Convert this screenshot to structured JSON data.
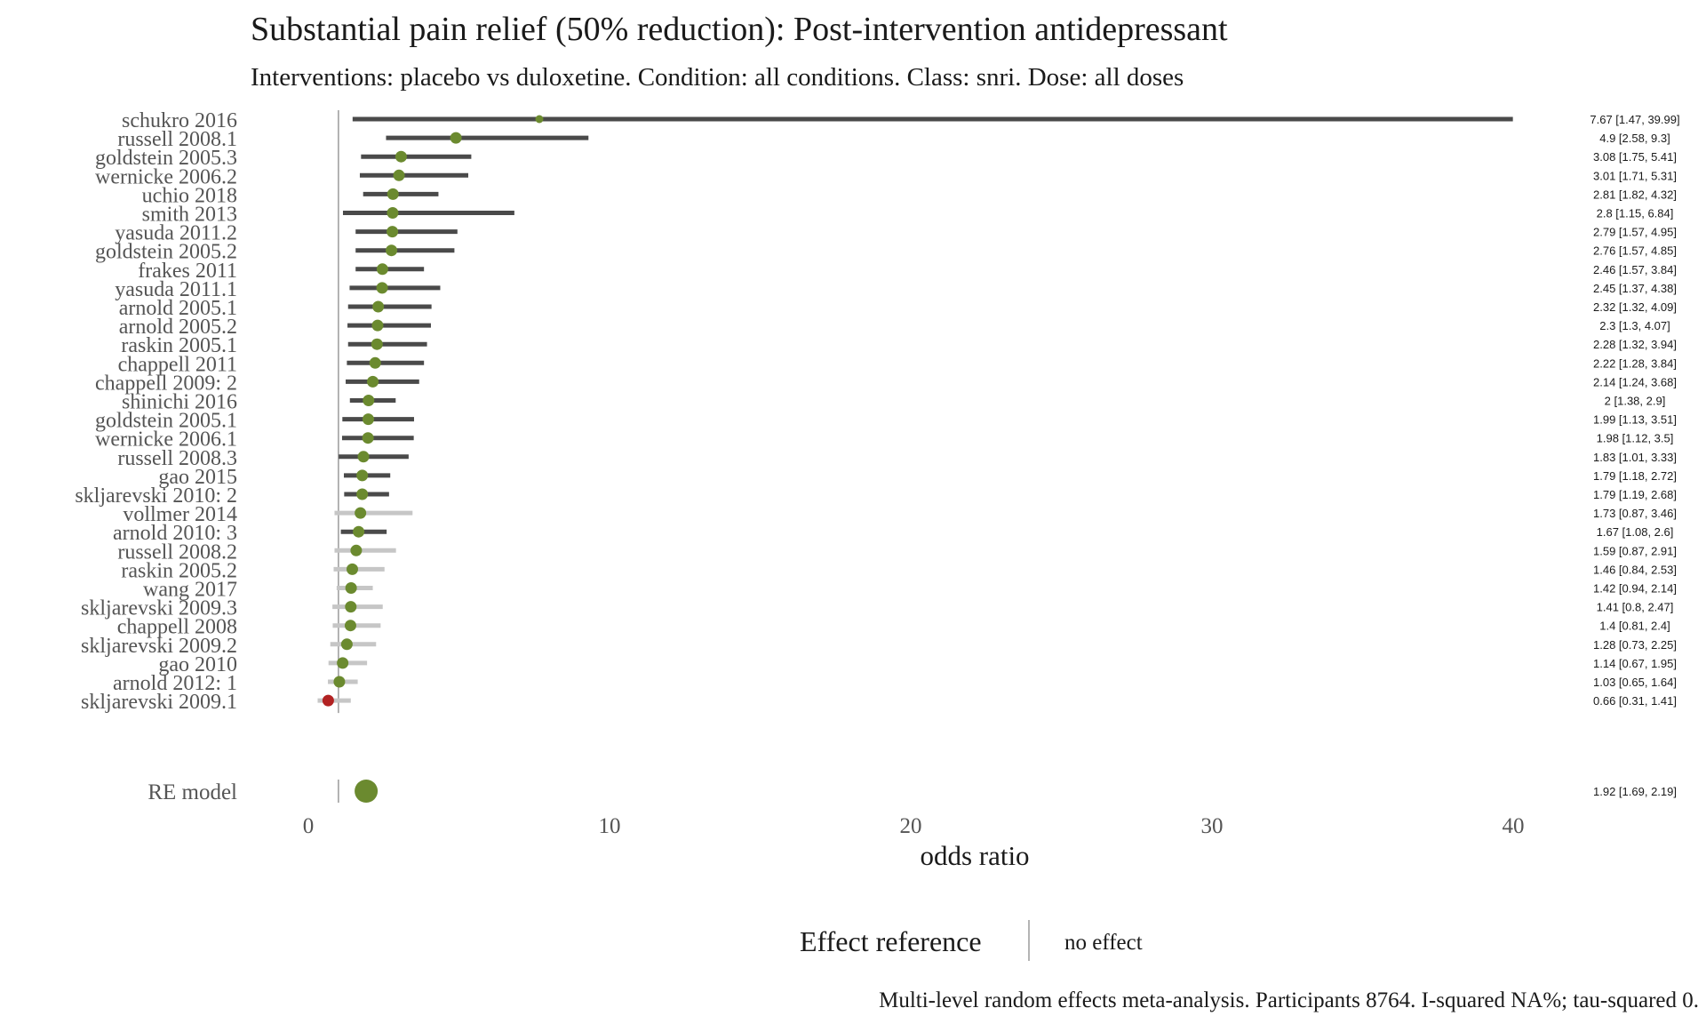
{
  "chart_data": {
    "type": "forest",
    "title": "Substantial pain relief (50% reduction): Post-intervention antidepressant",
    "subtitle": "Interventions: placebo vs duloxetine. Condition: all conditions. Class: snri. Dose: all doses",
    "xlabel": "odds ratio",
    "xlim": [
      0,
      40
    ],
    "xticks": [
      0,
      10,
      20,
      30,
      40
    ],
    "reference_value": 1,
    "studies": [
      {
        "name": "schukro 2016",
        "or": 7.67,
        "lower": 1.47,
        "upper": 39.99,
        "label": "7.67 [1.47, 39.99]"
      },
      {
        "name": "russell 2008.1",
        "or": 4.9,
        "lower": 2.58,
        "upper": 9.3,
        "label": "4.9 [2.58, 9.3]"
      },
      {
        "name": "goldstein 2005.3",
        "or": 3.08,
        "lower": 1.75,
        "upper": 5.41,
        "label": "3.08 [1.75, 5.41]"
      },
      {
        "name": "wernicke 2006.2",
        "or": 3.01,
        "lower": 1.71,
        "upper": 5.31,
        "label": "3.01 [1.71, 5.31]"
      },
      {
        "name": "uchio 2018",
        "or": 2.81,
        "lower": 1.82,
        "upper": 4.32,
        "label": "2.81 [1.82, 4.32]"
      },
      {
        "name": "smith 2013",
        "or": 2.8,
        "lower": 1.15,
        "upper": 6.84,
        "label": "2.8 [1.15, 6.84]"
      },
      {
        "name": "yasuda 2011.2",
        "or": 2.79,
        "lower": 1.57,
        "upper": 4.95,
        "label": "2.79 [1.57, 4.95]"
      },
      {
        "name": "goldstein 2005.2",
        "or": 2.76,
        "lower": 1.57,
        "upper": 4.85,
        "label": "2.76 [1.57, 4.85]"
      },
      {
        "name": "frakes 2011",
        "or": 2.46,
        "lower": 1.57,
        "upper": 3.84,
        "label": "2.46 [1.57, 3.84]"
      },
      {
        "name": "yasuda 2011.1",
        "or": 2.45,
        "lower": 1.37,
        "upper": 4.38,
        "label": "2.45 [1.37, 4.38]"
      },
      {
        "name": "arnold 2005.1",
        "or": 2.32,
        "lower": 1.32,
        "upper": 4.09,
        "label": "2.32 [1.32, 4.09]"
      },
      {
        "name": "arnold 2005.2",
        "or": 2.3,
        "lower": 1.3,
        "upper": 4.07,
        "label": "2.3 [1.3, 4.07]"
      },
      {
        "name": "raskin 2005.1",
        "or": 2.28,
        "lower": 1.32,
        "upper": 3.94,
        "label": "2.28 [1.32, 3.94]"
      },
      {
        "name": "chappell 2011",
        "or": 2.22,
        "lower": 1.28,
        "upper": 3.84,
        "label": "2.22 [1.28, 3.84]"
      },
      {
        "name": "chappell 2009: 2",
        "or": 2.14,
        "lower": 1.24,
        "upper": 3.68,
        "label": "2.14 [1.24, 3.68]"
      },
      {
        "name": "shinichi 2016",
        "or": 2,
        "lower": 1.38,
        "upper": 2.9,
        "label": "2 [1.38, 2.9]"
      },
      {
        "name": "goldstein 2005.1",
        "or": 1.99,
        "lower": 1.13,
        "upper": 3.51,
        "label": "1.99 [1.13, 3.51]"
      },
      {
        "name": "wernicke 2006.1",
        "or": 1.98,
        "lower": 1.12,
        "upper": 3.5,
        "label": "1.98 [1.12, 3.5]"
      },
      {
        "name": "russell 2008.3",
        "or": 1.83,
        "lower": 1.01,
        "upper": 3.33,
        "label": "1.83 [1.01, 3.33]"
      },
      {
        "name": "gao 2015",
        "or": 1.79,
        "lower": 1.18,
        "upper": 2.72,
        "label": "1.79 [1.18, 2.72]"
      },
      {
        "name": "skljarevski 2010: 2",
        "or": 1.79,
        "lower": 1.19,
        "upper": 2.68,
        "label": "1.79 [1.19, 2.68]"
      },
      {
        "name": "vollmer 2014",
        "or": 1.73,
        "lower": 0.87,
        "upper": 3.46,
        "label": "1.73 [0.87, 3.46]"
      },
      {
        "name": "arnold 2010: 3",
        "or": 1.67,
        "lower": 1.08,
        "upper": 2.6,
        "label": "1.67 [1.08, 2.6]"
      },
      {
        "name": "russell 2008.2",
        "or": 1.59,
        "lower": 0.87,
        "upper": 2.91,
        "label": "1.59 [0.87, 2.91]"
      },
      {
        "name": "raskin 2005.2",
        "or": 1.46,
        "lower": 0.84,
        "upper": 2.53,
        "label": "1.46 [0.84, 2.53]"
      },
      {
        "name": "wang 2017",
        "or": 1.42,
        "lower": 0.94,
        "upper": 2.14,
        "label": "1.42 [0.94, 2.14]"
      },
      {
        "name": "skljarevski 2009.3",
        "or": 1.41,
        "lower": 0.8,
        "upper": 2.47,
        "label": "1.41 [0.8, 2.47]"
      },
      {
        "name": "chappell 2008",
        "or": 1.4,
        "lower": 0.81,
        "upper": 2.4,
        "label": "1.4 [0.81, 2.4]"
      },
      {
        "name": "skljarevski 2009.2",
        "or": 1.28,
        "lower": 0.73,
        "upper": 2.25,
        "label": "1.28 [0.73, 2.25]"
      },
      {
        "name": "gao 2010",
        "or": 1.14,
        "lower": 0.67,
        "upper": 1.95,
        "label": "1.14 [0.67, 1.95]"
      },
      {
        "name": "arnold 2012: 1",
        "or": 1.03,
        "lower": 0.65,
        "upper": 1.64,
        "label": "1.03 [0.65, 1.64]"
      },
      {
        "name": "skljarevski 2009.1",
        "or": 0.66,
        "lower": 0.31,
        "upper": 1.41,
        "label": "0.66 [0.31, 1.41]"
      }
    ],
    "summary": {
      "name": "RE model",
      "or": 1.92,
      "lower": 1.69,
      "upper": 2.19,
      "label": "1.92 [1.69, 2.19]"
    },
    "legend": {
      "title": "Effect reference",
      "item": "no effect",
      "position": "bottom"
    },
    "footnote": "Multi-level random effects meta-analysis. Participants 8764. I-squared NA%; tau-squared 0.",
    "colors": {
      "positive_point": "#6b8a2f",
      "negative_point": "#b22222",
      "significant_ci": "#4a4a4a",
      "nonsignificant_ci": "#c6c6c6",
      "reference_line": "#9a9a9a",
      "text": "#1a1a1a",
      "label_text": "#555555"
    }
  }
}
